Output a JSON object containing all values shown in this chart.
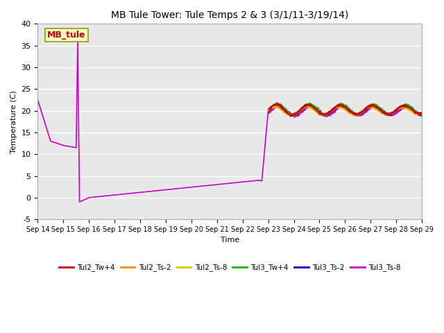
{
  "title": "MB Tule Tower: Tule Temps 2 & 3 (3/1/11-3/19/14)",
  "xlabel": "Time",
  "ylabel": "Temperature (C)",
  "ylim": [
    -5,
    40
  ],
  "xlim": [
    0,
    15
  ],
  "xtick_labels": [
    "Sep 14",
    "Sep 15",
    "Sep 16",
    "Sep 17",
    "Sep 18",
    "Sep 19",
    "Sep 20",
    "Sep 21",
    "Sep 22",
    "Sep 23",
    "Sep 24",
    "Sep 25",
    "Sep 26",
    "Sep 27",
    "Sep 28",
    "Sep 29"
  ],
  "xtick_positions": [
    0,
    1,
    2,
    3,
    4,
    5,
    6,
    7,
    8,
    9,
    10,
    11,
    12,
    13,
    14,
    15
  ],
  "ytick_positions": [
    -5,
    0,
    5,
    10,
    15,
    20,
    25,
    30,
    35,
    40
  ],
  "bg_color": "#e8e8e8",
  "grid_color": "#ffffff",
  "annotation_text": "MB_tule",
  "annotation_bg": "#ffffcc",
  "annotation_border": "#999900",
  "annotation_text_color": "#cc0000",
  "series": {
    "Tul2_Tw+4": {
      "color": "#cc0000",
      "lw": 1.0
    },
    "Tul2_Ts-2": {
      "color": "#ff8800",
      "lw": 1.0
    },
    "Tul2_Ts-8": {
      "color": "#cccc00",
      "lw": 1.0
    },
    "Tul3_Tw+4": {
      "color": "#00bb00",
      "lw": 1.0
    },
    "Tul3_Ts-2": {
      "color": "#0000cc",
      "lw": 1.0
    },
    "Tul3_Ts-8": {
      "color": "#cc00cc",
      "lw": 1.2
    }
  },
  "purple_keypoints": {
    "x": [
      0.0,
      0.5,
      1.0,
      1.5,
      1.55,
      1.62,
      1.75,
      2.0,
      8.7,
      8.85,
      9.0
    ],
    "y": [
      22.5,
      13.0,
      12.0,
      11.5,
      36.0,
      -1.0,
      0.0,
      0.0,
      4.0,
      3.8,
      20.0
    ]
  }
}
